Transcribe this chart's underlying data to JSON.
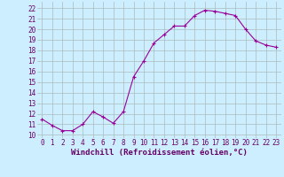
{
  "x": [
    0,
    1,
    2,
    3,
    4,
    5,
    6,
    7,
    8,
    9,
    10,
    11,
    12,
    13,
    14,
    15,
    16,
    17,
    18,
    19,
    20,
    21,
    22,
    23
  ],
  "y": [
    11.5,
    10.9,
    10.4,
    10.4,
    11.0,
    12.2,
    11.7,
    11.1,
    12.2,
    15.5,
    17.0,
    18.7,
    19.5,
    20.3,
    20.3,
    21.3,
    21.8,
    21.7,
    21.5,
    21.3,
    20.0,
    18.9,
    18.5,
    18.3
  ],
  "line_color": "#990099",
  "marker": "+",
  "marker_size": 3,
  "marker_lw": 0.8,
  "bg_color": "#cceeff",
  "grid_color": "#aabbbb",
  "xlabel": "Windchill (Refroidissement éolien,°C)",
  "xlabel_color": "#660066",
  "ylabel_ticks": [
    10,
    11,
    12,
    13,
    14,
    15,
    16,
    17,
    18,
    19,
    20,
    21,
    22
  ],
  "ylim": [
    9.7,
    22.6
  ],
  "xlim": [
    -0.5,
    23.5
  ],
  "tick_color": "#660066",
  "tick_fontsize": 5.5,
  "xlabel_fontsize": 6.5,
  "xlabel_fontweight": "bold",
  "line_width": 0.8
}
